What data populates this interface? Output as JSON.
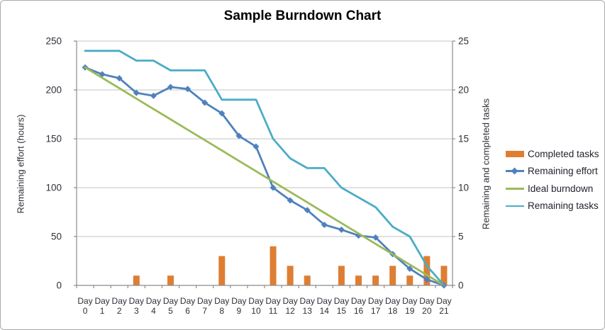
{
  "chart_data": {
    "type": "combo",
    "title": "Sample Burndown Chart",
    "categories": [
      "Day 0",
      "Day 1",
      "Day 2",
      "Day 3",
      "Day 4",
      "Day 5",
      "Day 6",
      "Day 7",
      "Day 8",
      "Day 9",
      "Day 10",
      "Day 11",
      "Day 12",
      "Day 13",
      "Day 14",
      "Day 15",
      "Day 16",
      "Day 17",
      "Day 18",
      "Day 19",
      "Day 20",
      "Day 21"
    ],
    "series": [
      {
        "name": "Completed tasks",
        "type": "bar",
        "axis": "right",
        "color": "#de7e33",
        "values": [
          0,
          0,
          0,
          1,
          0,
          1,
          0,
          0,
          3,
          0,
          0,
          4,
          2,
          1,
          0,
          2,
          1,
          1,
          2,
          1,
          3,
          2
        ]
      },
      {
        "name": "Remaining effort",
        "type": "line",
        "marker": "diamond",
        "axis": "left",
        "color": "#4f81bd",
        "values": [
          223,
          216,
          212,
          197,
          194,
          203,
          201,
          187,
          176,
          153,
          142,
          100,
          87,
          77,
          62,
          57,
          51,
          49,
          32,
          17,
          6,
          0
        ]
      },
      {
        "name": "Ideal burndown",
        "type": "line",
        "axis": "left",
        "color": "#9bbb59",
        "values": [
          223,
          212.4,
          201.8,
          191.1,
          180.5,
          169.9,
          159.3,
          148.7,
          138.1,
          127.4,
          116.8,
          106.2,
          95.6,
          85.0,
          74.3,
          63.7,
          53.1,
          42.5,
          31.9,
          21.2,
          10.6,
          0
        ]
      },
      {
        "name": "Remaining tasks",
        "type": "line",
        "axis": "right",
        "color": "#4bacc6",
        "values": [
          24,
          24,
          24,
          23,
          23,
          22,
          22,
          22,
          19,
          19,
          19,
          15,
          13,
          12,
          12,
          10,
          9,
          8,
          6,
          5,
          2,
          0
        ]
      }
    ],
    "left_axis": {
      "title": "Remaining effort (hours)",
      "min": 0,
      "max": 250,
      "step": 50
    },
    "right_axis": {
      "title": "Remaining and completed tasks",
      "min": 0,
      "max": 25,
      "step": 5
    },
    "legend": {
      "position": "right"
    },
    "grid": true,
    "palette": {
      "gridline": "#c3c3c3",
      "axis_line": "#8c8c8c",
      "tick_label": "#2f2f38"
    }
  }
}
